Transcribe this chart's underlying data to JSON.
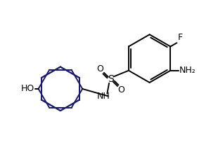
{
  "bg_color": "#ffffff",
  "line_color": "#000000",
  "ring_color": "#1a1a6e",
  "text_color": "#000000",
  "label_F": "F",
  "label_NH": "NH",
  "label_HO": "HO",
  "label_S": "S",
  "label_O": "O",
  "label_NH2": "NH₂",
  "font_size": 9,
  "lw": 1.4,
  "figw": 3.0,
  "figh": 2.2,
  "dpi": 100
}
